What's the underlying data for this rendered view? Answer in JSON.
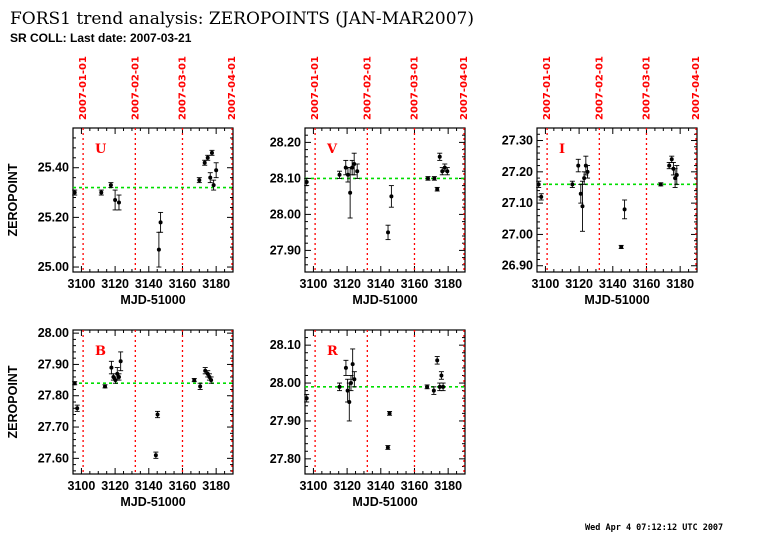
{
  "title": "FORS1 trend analysis: ZEROPOINTS (JAN-MAR2007)",
  "subtitle": "SR COLL: Last date: 2007-03-21",
  "footer": "Wed Apr 4 07:12:12 UTC 2007",
  "colors": {
    "ref_line": "#00dd00",
    "date_marker": "#ff0000",
    "band_label": "#ff0000",
    "frame": "#000000"
  },
  "chart_data": [
    {
      "type": "scatter",
      "band": "U",
      "xlabel": "MJD-51000",
      "ylabel": "ZEROPOINT",
      "xlim": [
        3095,
        3190
      ],
      "ylim": [
        24.98,
        25.56
      ],
      "x_ticks": [
        "3100",
        "3120",
        "3140",
        "3160",
        "3180"
      ],
      "y_ticks": [
        "25.00",
        "25.20",
        "25.40"
      ],
      "date_markers": [
        {
          "label": "2007-01-01",
          "x": 3101
        },
        {
          "label": "2007-02-01",
          "x": 3132
        },
        {
          "label": "2007-03-01",
          "x": 3160
        },
        {
          "label": "2007-04-01",
          "x": 3191
        }
      ],
      "reference_value": 25.32,
      "points": [
        {
          "x": 3096.0,
          "y": 25.3,
          "err": 0.01
        },
        {
          "x": 3111.8,
          "y": 25.3,
          "err": 0.01
        },
        {
          "x": 3117.5,
          "y": 25.33,
          "err": 0.01
        },
        {
          "x": 3120.0,
          "y": 25.27,
          "err": 0.04
        },
        {
          "x": 3122.3,
          "y": 25.26,
          "err": 0.03
        },
        {
          "x": 3146.0,
          "y": 25.07,
          "err": 0.07
        },
        {
          "x": 3147.0,
          "y": 25.18,
          "err": 0.04
        },
        {
          "x": 3170.0,
          "y": 25.35,
          "err": 0.01
        },
        {
          "x": 3173.2,
          "y": 25.42,
          "err": 0.01
        },
        {
          "x": 3175.0,
          "y": 25.44,
          "err": 0.01
        },
        {
          "x": 3176.5,
          "y": 25.36,
          "err": 0.02
        },
        {
          "x": 3177.5,
          "y": 25.46,
          "err": 0.01
        },
        {
          "x": 3178.5,
          "y": 25.33,
          "err": 0.02
        },
        {
          "x": 3180.0,
          "y": 25.39,
          "err": 0.03
        }
      ]
    },
    {
      "type": "scatter",
      "band": "V",
      "xlabel": "MJD-51000",
      "ylabel": "",
      "xlim": [
        3095,
        3190
      ],
      "ylim": [
        27.84,
        28.24
      ],
      "x_ticks": [
        "3100",
        "3120",
        "3140",
        "3160",
        "3180"
      ],
      "y_ticks": [
        "27.90",
        "28.00",
        "28.10",
        "28.20"
      ],
      "date_markers": [
        {
          "label": "2007-01-01",
          "x": 3101
        },
        {
          "label": "2007-02-01",
          "x": 3132
        },
        {
          "label": "2007-03-01",
          "x": 3160
        },
        {
          "label": "2007-04-01",
          "x": 3191
        }
      ],
      "reference_value": 28.1,
      "points": [
        {
          "x": 3096.0,
          "y": 28.09,
          "err": 0.01
        },
        {
          "x": 3115.5,
          "y": 28.11,
          "err": 0.01
        },
        {
          "x": 3119.2,
          "y": 28.13,
          "err": 0.02
        },
        {
          "x": 3120.5,
          "y": 28.11,
          "err": 0.02
        },
        {
          "x": 3121.8,
          "y": 28.06,
          "err": 0.07
        },
        {
          "x": 3123.0,
          "y": 28.13,
          "err": 0.02
        },
        {
          "x": 3124.2,
          "y": 28.14,
          "err": 0.03
        },
        {
          "x": 3126.0,
          "y": 28.12,
          "err": 0.02
        },
        {
          "x": 3144.3,
          "y": 27.95,
          "err": 0.02
        },
        {
          "x": 3146.3,
          "y": 28.05,
          "err": 0.03
        },
        {
          "x": 3168.0,
          "y": 28.1,
          "err": 0.005
        },
        {
          "x": 3171.8,
          "y": 28.1,
          "err": 0.005
        },
        {
          "x": 3173.5,
          "y": 28.07,
          "err": 0.005
        },
        {
          "x": 3175.0,
          "y": 28.16,
          "err": 0.01
        },
        {
          "x": 3176.5,
          "y": 28.12,
          "err": 0.01
        },
        {
          "x": 3178.0,
          "y": 28.13,
          "err": 0.01
        },
        {
          "x": 3179.5,
          "y": 28.12,
          "err": 0.01
        }
      ]
    },
    {
      "type": "scatter",
      "band": "I",
      "xlabel": "MJD-51000",
      "ylabel": "",
      "xlim": [
        3095,
        3190
      ],
      "ylim": [
        26.88,
        27.34
      ],
      "x_ticks": [
        "3100",
        "3120",
        "3140",
        "3160",
        "3180"
      ],
      "y_ticks": [
        "26.90",
        "27.00",
        "27.10",
        "27.20",
        "27.30"
      ],
      "date_markers": [
        {
          "label": "2007-01-01",
          "x": 3101
        },
        {
          "label": "2007-02-01",
          "x": 3132
        },
        {
          "label": "2007-03-01",
          "x": 3160
        },
        {
          "label": "2007-04-01",
          "x": 3191
        }
      ],
      "reference_value": 27.16,
      "points": [
        {
          "x": 3096.0,
          "y": 27.16,
          "err": 0.01
        },
        {
          "x": 3097.5,
          "y": 27.12,
          "err": 0.01
        },
        {
          "x": 3116.0,
          "y": 27.16,
          "err": 0.01
        },
        {
          "x": 3119.5,
          "y": 27.22,
          "err": 0.02
        },
        {
          "x": 3121.0,
          "y": 27.13,
          "err": 0.03
        },
        {
          "x": 3122.0,
          "y": 27.09,
          "err": 0.08
        },
        {
          "x": 3123.0,
          "y": 27.18,
          "err": 0.02
        },
        {
          "x": 3124.0,
          "y": 27.22,
          "err": 0.03
        },
        {
          "x": 3125.0,
          "y": 27.2,
          "err": 0.02
        },
        {
          "x": 3145.0,
          "y": 26.96,
          "err": 0.005
        },
        {
          "x": 3147.0,
          "y": 27.08,
          "err": 0.03
        },
        {
          "x": 3168.5,
          "y": 27.16,
          "err": 0.005
        },
        {
          "x": 3173.5,
          "y": 27.22,
          "err": 0.01
        },
        {
          "x": 3175.0,
          "y": 27.24,
          "err": 0.01
        },
        {
          "x": 3176.0,
          "y": 27.21,
          "err": 0.02
        },
        {
          "x": 3177.0,
          "y": 27.18,
          "err": 0.03
        },
        {
          "x": 3178.0,
          "y": 27.19,
          "err": 0.03
        }
      ]
    },
    {
      "type": "scatter",
      "band": "B",
      "xlabel": "MJD-51000",
      "ylabel": "ZEROPOINT",
      "xlim": [
        3095,
        3190
      ],
      "ylim": [
        27.55,
        28.01
      ],
      "x_ticks": [
        "3100",
        "3120",
        "3140",
        "3160",
        "3180"
      ],
      "y_ticks": [
        "27.60",
        "27.70",
        "27.80",
        "27.90",
        "28.00"
      ],
      "date_markers": [
        {
          "x": 3101
        },
        {
          "x": 3132
        },
        {
          "x": 3160
        },
        {
          "x": 3191
        }
      ],
      "reference_value": 27.84,
      "points": [
        {
          "x": 3096.0,
          "y": 27.84,
          "err": 0.005
        },
        {
          "x": 3097.5,
          "y": 27.76,
          "err": 0.01
        },
        {
          "x": 3114.0,
          "y": 27.83,
          "err": 0.005
        },
        {
          "x": 3117.8,
          "y": 27.89,
          "err": 0.02
        },
        {
          "x": 3119.0,
          "y": 27.86,
          "err": 0.01
        },
        {
          "x": 3120.2,
          "y": 27.85,
          "err": 0.01
        },
        {
          "x": 3121.3,
          "y": 27.87,
          "err": 0.02
        },
        {
          "x": 3122.3,
          "y": 27.86,
          "err": 0.01
        },
        {
          "x": 3123.3,
          "y": 27.91,
          "err": 0.03
        },
        {
          "x": 3144.2,
          "y": 27.61,
          "err": 0.01
        },
        {
          "x": 3145.2,
          "y": 27.74,
          "err": 0.01
        },
        {
          "x": 3167.0,
          "y": 27.85,
          "err": 0.005
        },
        {
          "x": 3170.5,
          "y": 27.83,
          "err": 0.01
        },
        {
          "x": 3173.5,
          "y": 27.88,
          "err": 0.01
        },
        {
          "x": 3175.0,
          "y": 27.87,
          "err": 0.01
        },
        {
          "x": 3176.0,
          "y": 27.86,
          "err": 0.01
        },
        {
          "x": 3177.0,
          "y": 27.85,
          "err": 0.01
        }
      ]
    },
    {
      "type": "scatter",
      "band": "R",
      "xlabel": "MJD-51000",
      "ylabel": "",
      "xlim": [
        3095,
        3190
      ],
      "ylim": [
        27.76,
        28.14
      ],
      "x_ticks": [
        "3100",
        "3120",
        "3140",
        "3160",
        "3180"
      ],
      "y_ticks": [
        "27.80",
        "27.90",
        "28.00",
        "28.10"
      ],
      "date_markers": [
        {
          "x": 3101
        },
        {
          "x": 3132
        },
        {
          "x": 3160
        },
        {
          "x": 3191
        }
      ],
      "reference_value": 27.99,
      "points": [
        {
          "x": 3096.0,
          "y": 27.96,
          "err": 0.01
        },
        {
          "x": 3115.5,
          "y": 27.99,
          "err": 0.01
        },
        {
          "x": 3119.3,
          "y": 28.04,
          "err": 0.02
        },
        {
          "x": 3120.3,
          "y": 27.98,
          "err": 0.03
        },
        {
          "x": 3121.3,
          "y": 27.95,
          "err": 0.05
        },
        {
          "x": 3122.3,
          "y": 28.0,
          "err": 0.02
        },
        {
          "x": 3123.3,
          "y": 28.05,
          "err": 0.04
        },
        {
          "x": 3124.3,
          "y": 28.01,
          "err": 0.02
        },
        {
          "x": 3144.2,
          "y": 27.83,
          "err": 0.005
        },
        {
          "x": 3145.2,
          "y": 27.92,
          "err": 0.005
        },
        {
          "x": 3167.5,
          "y": 27.99,
          "err": 0.005
        },
        {
          "x": 3171.5,
          "y": 27.98,
          "err": 0.01
        },
        {
          "x": 3173.5,
          "y": 28.06,
          "err": 0.01
        },
        {
          "x": 3175.0,
          "y": 27.99,
          "err": 0.01
        },
        {
          "x": 3176.0,
          "y": 28.02,
          "err": 0.01
        },
        {
          "x": 3177.0,
          "y": 27.99,
          "err": 0.01
        }
      ]
    }
  ]
}
